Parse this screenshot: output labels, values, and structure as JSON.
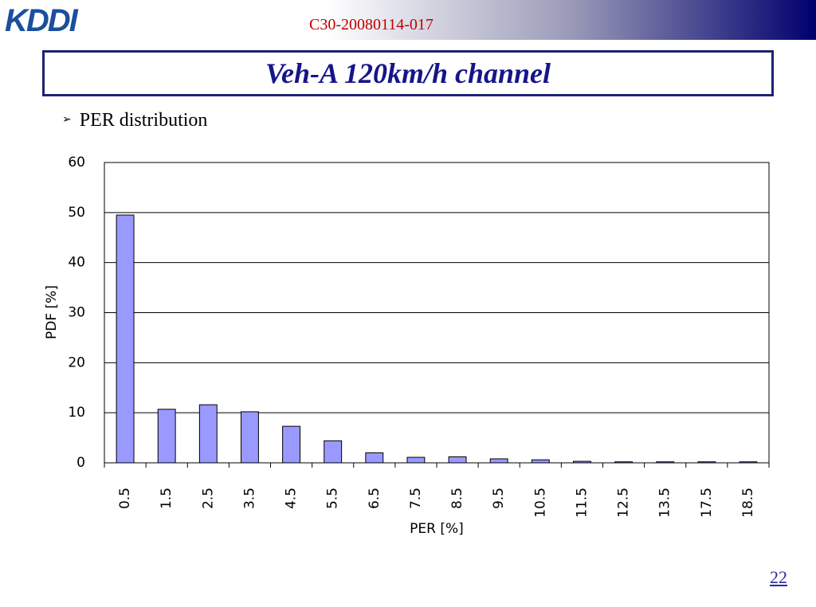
{
  "header": {
    "logo": "KDDI",
    "doc_id": "C30-20080114-017"
  },
  "slide": {
    "title": "Veh-A 120km/h channel",
    "bullet": "PER distribution",
    "page_number": "22"
  },
  "chart_data": {
    "type": "bar",
    "x_label": "PER [%]",
    "y_label": "PDF [%]",
    "categories": [
      "0.5",
      "1.5",
      "2.5",
      "3.5",
      "4.5",
      "5.5",
      "6.5",
      "7.5",
      "8.5",
      "9.5",
      "10.5",
      "11.5",
      "12.5",
      "13.5",
      "17.5",
      "18.5"
    ],
    "values": [
      49.5,
      10.7,
      11.6,
      10.2,
      7.3,
      4.4,
      2.0,
      1.1,
      1.2,
      0.8,
      0.6,
      0.3,
      0.2,
      0.2,
      0.2,
      0.2
    ],
    "color": "#9999ff",
    "ylim": [
      0,
      60
    ],
    "yticks": [
      0,
      10,
      20,
      30,
      40,
      50,
      60
    ],
    "grid": true
  }
}
